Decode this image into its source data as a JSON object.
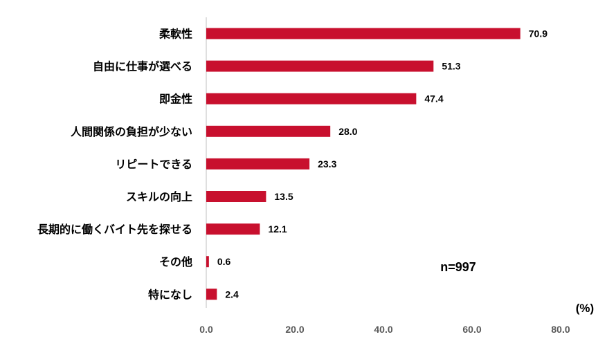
{
  "chart_data": {
    "type": "bar",
    "orientation": "horizontal",
    "categories": [
      "柔軟性",
      "自由に仕事が選べる",
      "即金性",
      "人間関係の負担が少ない",
      "リピートできる",
      "スキルの向上",
      "長期的に働くバイト先を探せる",
      "その他",
      "特になし"
    ],
    "values": [
      70.9,
      51.3,
      47.4,
      28.0,
      23.3,
      13.5,
      12.1,
      0.6,
      2.4
    ],
    "value_labels": [
      "70.9",
      "51.3",
      "47.4",
      "28.0",
      "23.3",
      "13.5",
      "12.1",
      "0.6",
      "2.4"
    ],
    "xlim": [
      0,
      80
    ],
    "x_ticks": [
      "0.0",
      "20.0",
      "40.0",
      "60.0",
      "80.0"
    ],
    "x_tick_values": [
      0,
      20,
      40,
      60,
      80
    ],
    "unit": "(%)",
    "annotation": "n=997",
    "bar_color": "#C8102E",
    "axis_color": "#BFBFBF",
    "grid": false
  }
}
